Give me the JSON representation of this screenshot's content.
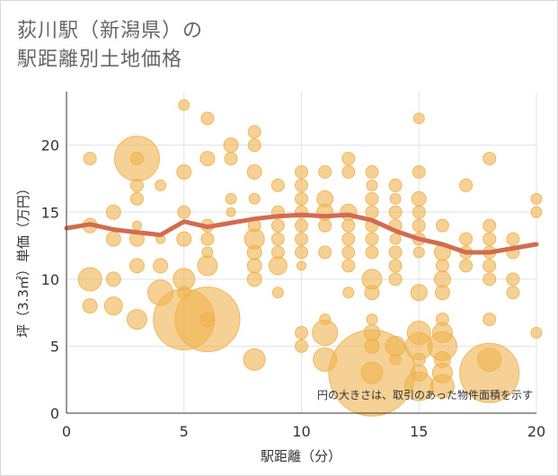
{
  "chart_data": {
    "type": "scatter",
    "title_line1": "荻川駅（新潟県）の",
    "title_line2": "駅距離別土地価格",
    "xlabel": "駅距離（分）",
    "ylabel": "坪（3.3㎡）単価（万円）",
    "note": "円の大きさは、取引のあった物件面積を示す",
    "xlim": [
      0,
      20
    ],
    "ylim": [
      0,
      24
    ],
    "xticks": [
      "0",
      "5",
      "10",
      "15",
      "20"
    ],
    "yticks": [
      "0",
      "5",
      "10",
      "15",
      "20"
    ],
    "colors": {
      "bubble": "#f0b24e",
      "trend": "#d26b50",
      "grid": "#dfe3ea",
      "axis": "#333333"
    },
    "points": [
      [
        1,
        19,
        7
      ],
      [
        1,
        14,
        8
      ],
      [
        1,
        10,
        13
      ],
      [
        1,
        8,
        8
      ],
      [
        2,
        15,
        8
      ],
      [
        2,
        13,
        8
      ],
      [
        2,
        10,
        8
      ],
      [
        2,
        8,
        10
      ],
      [
        3,
        19,
        25
      ],
      [
        3,
        19,
        7
      ],
      [
        3,
        17,
        7
      ],
      [
        3,
        16,
        7
      ],
      [
        3,
        14,
        5
      ],
      [
        3,
        13,
        8
      ],
      [
        3,
        11,
        8
      ],
      [
        3,
        7,
        11
      ],
      [
        4,
        17,
        6
      ],
      [
        4,
        13,
        5
      ],
      [
        4,
        11,
        8
      ],
      [
        4,
        9,
        14
      ],
      [
        5,
        23,
        6
      ],
      [
        5,
        18,
        8
      ],
      [
        5,
        15,
        7
      ],
      [
        5,
        13,
        8
      ],
      [
        5,
        10,
        12
      ],
      [
        5,
        9,
        7
      ],
      [
        5,
        7,
        34
      ],
      [
        6,
        22,
        7
      ],
      [
        6,
        19,
        8
      ],
      [
        6,
        14,
        7
      ],
      [
        6,
        13,
        7
      ],
      [
        6,
        12,
        6
      ],
      [
        6,
        11,
        11
      ],
      [
        6,
        7,
        36
      ],
      [
        6,
        7,
        8
      ],
      [
        7,
        20,
        8
      ],
      [
        7,
        19,
        7
      ],
      [
        7,
        16,
        6
      ],
      [
        7,
        15,
        5
      ],
      [
        8,
        21,
        7
      ],
      [
        8,
        20,
        7
      ],
      [
        8,
        18,
        8
      ],
      [
        8,
        16,
        6
      ],
      [
        8,
        14,
        7
      ],
      [
        8,
        13,
        11
      ],
      [
        8,
        12,
        8
      ],
      [
        8,
        11,
        8
      ],
      [
        8,
        10,
        8
      ],
      [
        8,
        4,
        12
      ],
      [
        9,
        17,
        7
      ],
      [
        9,
        15,
        7
      ],
      [
        9,
        14,
        7
      ],
      [
        9,
        13,
        7
      ],
      [
        9,
        12,
        7
      ],
      [
        9,
        11,
        10
      ],
      [
        9,
        9,
        6
      ],
      [
        10,
        18,
        7
      ],
      [
        10,
        17,
        7
      ],
      [
        10,
        16,
        7
      ],
      [
        10,
        15,
        7
      ],
      [
        10,
        14,
        7
      ],
      [
        10,
        13,
        7
      ],
      [
        10,
        12,
        7
      ],
      [
        10,
        11,
        5
      ],
      [
        10,
        6,
        7
      ],
      [
        10,
        5,
        7
      ],
      [
        11,
        18,
        7
      ],
      [
        11,
        16,
        9
      ],
      [
        11,
        15,
        9
      ],
      [
        11,
        14,
        7
      ],
      [
        11,
        12,
        7
      ],
      [
        11,
        7,
        6
      ],
      [
        11,
        6,
        14
      ],
      [
        11,
        4,
        13
      ],
      [
        12,
        19,
        7
      ],
      [
        12,
        18,
        7
      ],
      [
        12,
        15,
        9
      ],
      [
        12,
        14,
        7
      ],
      [
        12,
        13,
        7
      ],
      [
        12,
        12,
        7
      ],
      [
        12,
        11,
        7
      ],
      [
        12,
        9,
        6
      ],
      [
        13,
        18,
        7
      ],
      [
        13,
        17,
        6
      ],
      [
        13,
        16,
        7
      ],
      [
        13,
        15,
        7
      ],
      [
        13,
        14,
        7
      ],
      [
        13,
        13,
        7
      ],
      [
        13,
        12,
        7
      ],
      [
        13,
        10,
        11
      ],
      [
        13,
        9,
        8
      ],
      [
        13,
        7,
        6
      ],
      [
        13,
        6,
        9
      ],
      [
        13,
        5,
        8
      ],
      [
        13,
        3,
        48
      ],
      [
        13,
        3,
        12
      ],
      [
        14,
        17,
        7
      ],
      [
        14,
        16,
        6
      ],
      [
        14,
        15,
        7
      ],
      [
        14,
        14,
        7
      ],
      [
        14,
        13,
        6
      ],
      [
        14,
        12,
        7
      ],
      [
        14,
        11,
        7
      ],
      [
        14,
        10,
        7
      ],
      [
        14,
        5,
        11
      ],
      [
        14,
        4,
        6
      ],
      [
        15,
        22,
        6
      ],
      [
        15,
        18,
        7
      ],
      [
        15,
        16,
        8
      ],
      [
        15,
        15,
        7
      ],
      [
        15,
        14,
        7
      ],
      [
        15,
        13,
        7
      ],
      [
        15,
        12,
        6
      ],
      [
        15,
        9,
        9
      ],
      [
        15,
        6,
        13
      ],
      [
        15,
        5,
        15
      ],
      [
        15,
        4,
        7
      ],
      [
        15,
        3,
        9
      ],
      [
        15,
        2,
        16
      ],
      [
        16,
        14,
        7
      ],
      [
        16,
        12,
        9
      ],
      [
        16,
        11,
        7
      ],
      [
        16,
        10,
        9
      ],
      [
        16,
        9,
        8
      ],
      [
        16,
        7,
        7
      ],
      [
        16,
        6,
        11
      ],
      [
        16,
        5,
        16
      ],
      [
        16,
        4,
        9
      ],
      [
        16,
        3,
        11
      ],
      [
        16,
        2,
        13
      ],
      [
        17,
        17,
        7
      ],
      [
        17,
        13,
        7
      ],
      [
        17,
        12,
        7
      ],
      [
        17,
        11,
        7
      ],
      [
        18,
        19,
        7
      ],
      [
        18,
        14,
        7
      ],
      [
        18,
        13,
        7
      ],
      [
        18,
        12,
        7
      ],
      [
        18,
        11,
        7
      ],
      [
        18,
        10,
        7
      ],
      [
        18,
        7,
        7
      ],
      [
        18,
        4,
        13
      ],
      [
        18,
        3,
        33
      ],
      [
        19,
        13,
        7
      ],
      [
        19,
        12,
        7
      ],
      [
        19,
        10,
        7
      ],
      [
        19,
        9,
        7
      ],
      [
        20,
        16,
        6
      ],
      [
        20,
        15,
        6
      ],
      [
        20,
        6,
        6
      ]
    ],
    "trend": [
      [
        0,
        13.8
      ],
      [
        1,
        14.1
      ],
      [
        2,
        13.7
      ],
      [
        3,
        13.5
      ],
      [
        4,
        13.3
      ],
      [
        5,
        14.3
      ],
      [
        6,
        13.9
      ],
      [
        7,
        14.2
      ],
      [
        8,
        14.5
      ],
      [
        9,
        14.7
      ],
      [
        10,
        14.8
      ],
      [
        11,
        14.7
      ],
      [
        12,
        14.8
      ],
      [
        13,
        14.4
      ],
      [
        14,
        13.6
      ],
      [
        15,
        13.0
      ],
      [
        16,
        12.6
      ],
      [
        17,
        12.0
      ],
      [
        18,
        12.0
      ],
      [
        19,
        12.3
      ],
      [
        20,
        12.6
      ]
    ]
  }
}
